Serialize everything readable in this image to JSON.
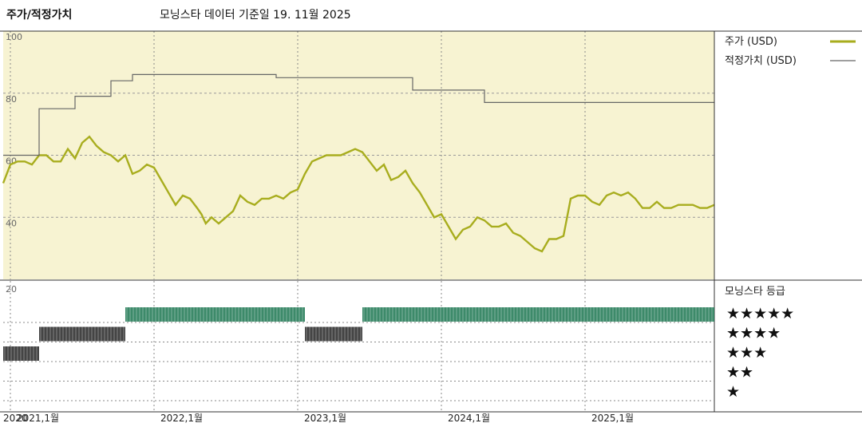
{
  "header": {
    "title": "주가/적정가치",
    "subtitle": "모닝스타 데이터 기준일 19. 11월 2025"
  },
  "rating_panel": {
    "title": "모닝스타 등급",
    "levels": [
      "★★★★★",
      "★★★★",
      "★★★",
      "★★",
      "★"
    ]
  },
  "chart_data": [
    {
      "type": "line",
      "title": "주가/적정가치",
      "series": [
        {
          "name": "주가 (USD)",
          "color": "#a8ad1e",
          "points": [
            [
              2020.95,
              51
            ],
            [
              2021.0,
              57
            ],
            [
              2021.05,
              58
            ],
            [
              2021.1,
              58
            ],
            [
              2021.15,
              57
            ],
            [
              2021.2,
              60
            ],
            [
              2021.25,
              60
            ],
            [
              2021.3,
              58
            ],
            [
              2021.35,
              58
            ],
            [
              2021.4,
              62
            ],
            [
              2021.45,
              59
            ],
            [
              2021.5,
              64
            ],
            [
              2021.55,
              66
            ],
            [
              2021.6,
              63
            ],
            [
              2021.65,
              61
            ],
            [
              2021.7,
              60
            ],
            [
              2021.75,
              58
            ],
            [
              2021.8,
              60
            ],
            [
              2021.85,
              54
            ],
            [
              2021.9,
              55
            ],
            [
              2021.95,
              57
            ],
            [
              2022.0,
              56
            ],
            [
              2022.05,
              52
            ],
            [
              2022.1,
              48
            ],
            [
              2022.15,
              44
            ],
            [
              2022.2,
              47
            ],
            [
              2022.25,
              46
            ],
            [
              2022.3,
              43
            ],
            [
              2022.33,
              41
            ],
            [
              2022.36,
              38
            ],
            [
              2022.4,
              40
            ],
            [
              2022.45,
              38
            ],
            [
              2022.5,
              40
            ],
            [
              2022.55,
              42
            ],
            [
              2022.6,
              47
            ],
            [
              2022.65,
              45
            ],
            [
              2022.7,
              44
            ],
            [
              2022.75,
              46
            ],
            [
              2022.8,
              46
            ],
            [
              2022.85,
              47
            ],
            [
              2022.9,
              46
            ],
            [
              2022.95,
              48
            ],
            [
              2023.0,
              49
            ],
            [
              2023.05,
              54
            ],
            [
              2023.1,
              58
            ],
            [
              2023.15,
              59
            ],
            [
              2023.2,
              60
            ],
            [
              2023.25,
              60
            ],
            [
              2023.3,
              60
            ],
            [
              2023.35,
              61
            ],
            [
              2023.4,
              62
            ],
            [
              2023.45,
              61
            ],
            [
              2023.5,
              58
            ],
            [
              2023.55,
              55
            ],
            [
              2023.6,
              57
            ],
            [
              2023.65,
              52
            ],
            [
              2023.7,
              53
            ],
            [
              2023.75,
              55
            ],
            [
              2023.8,
              51
            ],
            [
              2023.85,
              48
            ],
            [
              2023.9,
              44
            ],
            [
              2023.95,
              40
            ],
            [
              2024.0,
              41
            ],
            [
              2024.05,
              37
            ],
            [
              2024.1,
              33
            ],
            [
              2024.15,
              36
            ],
            [
              2024.2,
              37
            ],
            [
              2024.25,
              40
            ],
            [
              2024.3,
              39
            ],
            [
              2024.35,
              37
            ],
            [
              2024.4,
              37
            ],
            [
              2024.45,
              38
            ],
            [
              2024.5,
              35
            ],
            [
              2024.55,
              34
            ],
            [
              2024.6,
              32
            ],
            [
              2024.65,
              30
            ],
            [
              2024.7,
              29
            ],
            [
              2024.75,
              33
            ],
            [
              2024.8,
              33
            ],
            [
              2024.85,
              34
            ],
            [
              2024.9,
              46
            ],
            [
              2024.95,
              47
            ],
            [
              2025.0,
              47
            ],
            [
              2025.05,
              45
            ],
            [
              2025.1,
              44
            ],
            [
              2025.15,
              47
            ],
            [
              2025.2,
              48
            ],
            [
              2025.25,
              47
            ],
            [
              2025.3,
              48
            ],
            [
              2025.35,
              46
            ],
            [
              2025.4,
              43
            ],
            [
              2025.45,
              43
            ],
            [
              2025.5,
              45
            ],
            [
              2025.55,
              43
            ],
            [
              2025.6,
              43
            ],
            [
              2025.65,
              44
            ],
            [
              2025.7,
              44
            ],
            [
              2025.75,
              44
            ],
            [
              2025.8,
              43
            ],
            [
              2025.85,
              43
            ],
            [
              2025.9,
              44
            ]
          ]
        },
        {
          "name": "적정가치 (USD)",
          "color": "#666666",
          "points": [
            [
              2020.95,
              60
            ],
            [
              2021.2,
              60
            ],
            [
              2021.2,
              75
            ],
            [
              2021.45,
              75
            ],
            [
              2021.45,
              79
            ],
            [
              2021.7,
              79
            ],
            [
              2021.7,
              84
            ],
            [
              2021.85,
              84
            ],
            [
              2021.85,
              86
            ],
            [
              2022.85,
              86
            ],
            [
              2022.85,
              85
            ],
            [
              2023.8,
              85
            ],
            [
              2023.8,
              81
            ],
            [
              2024.3,
              81
            ],
            [
              2024.3,
              77
            ],
            [
              2025.9,
              77
            ]
          ]
        }
      ],
      "ylim": [
        20,
        100
      ],
      "yticks": [
        40,
        60,
        80,
        100
      ],
      "tick_labels": [
        "2020",
        "2021,1월",
        "2022,1월",
        "2023,1월",
        "2024,1월",
        "2025,1월"
      ],
      "grid": true,
      "legend": "right"
    },
    {
      "type": "bar",
      "title": "모닝스타 등급",
      "ylabel": "",
      "ytick": "20",
      "stars_axis": [
        1,
        5
      ],
      "segments": [
        {
          "start": 2020.95,
          "end": 2021.2,
          "stars": 3,
          "color": "#444444"
        },
        {
          "start": 2021.2,
          "end": 2021.8,
          "stars": 4,
          "color": "#444444"
        },
        {
          "start": 2021.8,
          "end": 2023.05,
          "stars": 5,
          "color": "#3d8a6a"
        },
        {
          "start": 2023.05,
          "end": 2023.45,
          "stars": 4,
          "color": "#444444"
        },
        {
          "start": 2023.45,
          "end": 2025.9,
          "stars": 5,
          "color": "#3d8a6a"
        }
      ]
    }
  ]
}
